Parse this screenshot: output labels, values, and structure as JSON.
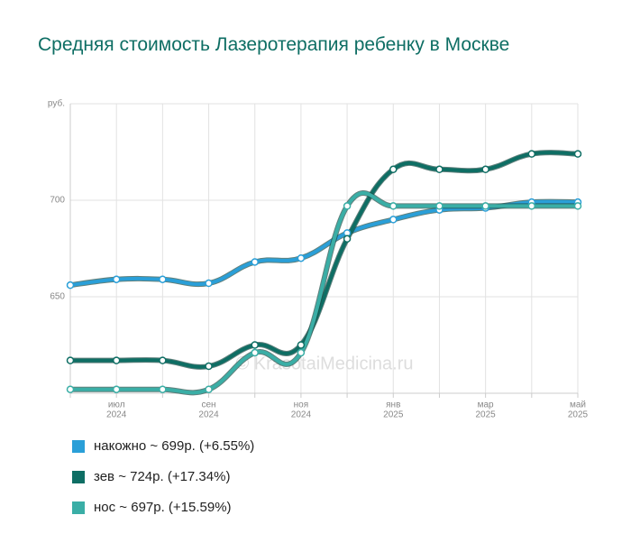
{
  "chart_data": {
    "type": "line",
    "title": "Средняя стоимость Лазеротерапия ребенку в Москве",
    "watermark": "© KrasotaiMedicina.ru",
    "categories": [
      null,
      [
        "июл",
        "2024"
      ],
      null,
      [
        "сен",
        "2024"
      ],
      null,
      [
        "ноя",
        "2024"
      ],
      null,
      [
        "янв",
        "2025"
      ],
      null,
      [
        "мар",
        "2025"
      ],
      null,
      [
        "май",
        "2025"
      ]
    ],
    "ylim": [
      600,
      750
    ],
    "yticks": [
      650,
      700,
      {
        "value": 750,
        "label": "руб."
      }
    ],
    "grid": true,
    "series": [
      {
        "name": "накожно ~ 699р. (+6.55%)",
        "color": "#2a9fd8",
        "values": [
          656,
          659,
          659,
          657,
          668,
          670,
          683,
          690,
          695,
          696,
          699,
          699
        ]
      },
      {
        "name": "зев ~ 724р. (+17.34%)",
        "color": "#0e6e64",
        "values": [
          617,
          617,
          617,
          614,
          625,
          625,
          680,
          716,
          716,
          716,
          724,
          724
        ]
      },
      {
        "name": "нос ~ 697р. (+15.59%)",
        "color": "#3aaea6",
        "values": [
          602,
          602,
          602,
          602,
          621,
          621,
          697,
          697,
          697,
          697,
          697,
          697
        ]
      }
    ]
  }
}
